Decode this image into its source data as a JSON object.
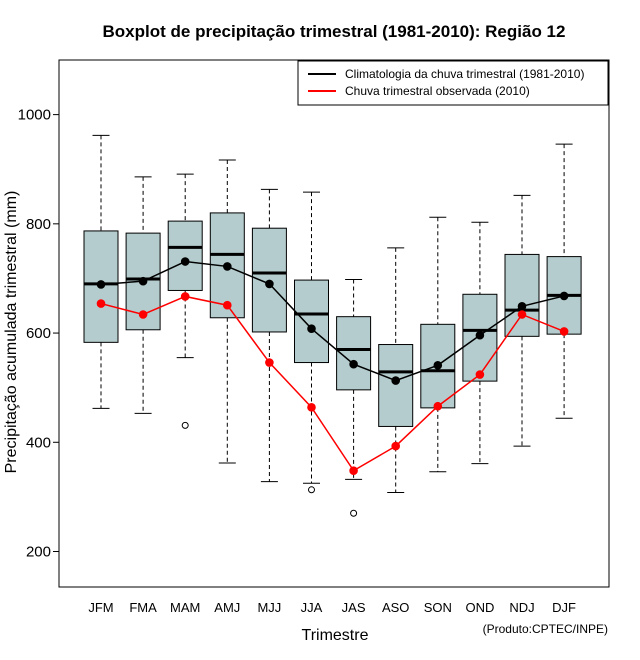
{
  "chart_data": {
    "type": "boxplot",
    "title": "Boxplot de precipitação trimestral (1981-2010): Região 12",
    "xlabel": "Trimestre",
    "ylabel": "Precipitação acumulada trimestral (mm)",
    "ylim": [
      135,
      1100
    ],
    "yticks": [
      200,
      400,
      600,
      800,
      1000
    ],
    "categories": [
      "JFM",
      "FMA",
      "MAM",
      "AMJ",
      "MJJ",
      "JJA",
      "JAS",
      "ASO",
      "SON",
      "OND",
      "NDJ",
      "DJF"
    ],
    "boxes": [
      {
        "whisker_low": 462,
        "q1": 583,
        "median": 690,
        "q3": 787,
        "whisker_high": 962,
        "outliers": []
      },
      {
        "whisker_low": 453,
        "q1": 606,
        "median": 699,
        "q3": 783,
        "whisker_high": 886,
        "outliers": []
      },
      {
        "whisker_low": 555,
        "q1": 678,
        "median": 757,
        "q3": 805,
        "whisker_high": 891,
        "outliers": [
          431
        ]
      },
      {
        "whisker_low": 362,
        "q1": 628,
        "median": 744,
        "q3": 820,
        "whisker_high": 917,
        "outliers": []
      },
      {
        "whisker_low": 328,
        "q1": 602,
        "median": 710,
        "q3": 792,
        "whisker_high": 863,
        "outliers": []
      },
      {
        "whisker_low": 325,
        "q1": 546,
        "median": 635,
        "q3": 697,
        "whisker_high": 858,
        "outliers": [
          313
        ]
      },
      {
        "whisker_low": 332,
        "q1": 496,
        "median": 570,
        "q3": 630,
        "whisker_high": 698,
        "outliers": [
          270
        ]
      },
      {
        "whisker_low": 308,
        "q1": 429,
        "median": 529,
        "q3": 579,
        "whisker_high": 756,
        "outliers": []
      },
      {
        "whisker_low": 346,
        "q1": 463,
        "median": 531,
        "q3": 616,
        "whisker_high": 812,
        "outliers": []
      },
      {
        "whisker_low": 361,
        "q1": 512,
        "median": 605,
        "q3": 671,
        "whisker_high": 803,
        "outliers": []
      },
      {
        "whisker_low": 393,
        "q1": 594,
        "median": 642,
        "q3": 744,
        "whisker_high": 852,
        "outliers": []
      },
      {
        "whisker_low": 444,
        "q1": 598,
        "median": 669,
        "q3": 740,
        "whisker_high": 946,
        "outliers": []
      }
    ],
    "series": [
      {
        "name": "Climatologia da chuva trimestral (1981-2010)",
        "color": "#000000",
        "values": [
          689,
          695,
          731,
          722,
          690,
          608,
          543,
          513,
          541,
          596,
          649,
          668
        ]
      },
      {
        "name": "Chuva trimestral observada (2010)",
        "color": "#ff0000",
        "values": [
          654,
          634,
          667,
          651,
          546,
          464,
          348,
          393,
          466,
          524,
          634,
          603
        ]
      }
    ],
    "box_fill": "#b4cccd",
    "legend_position": "top-right",
    "credit": "(Produto:CPTEC/INPE)"
  }
}
